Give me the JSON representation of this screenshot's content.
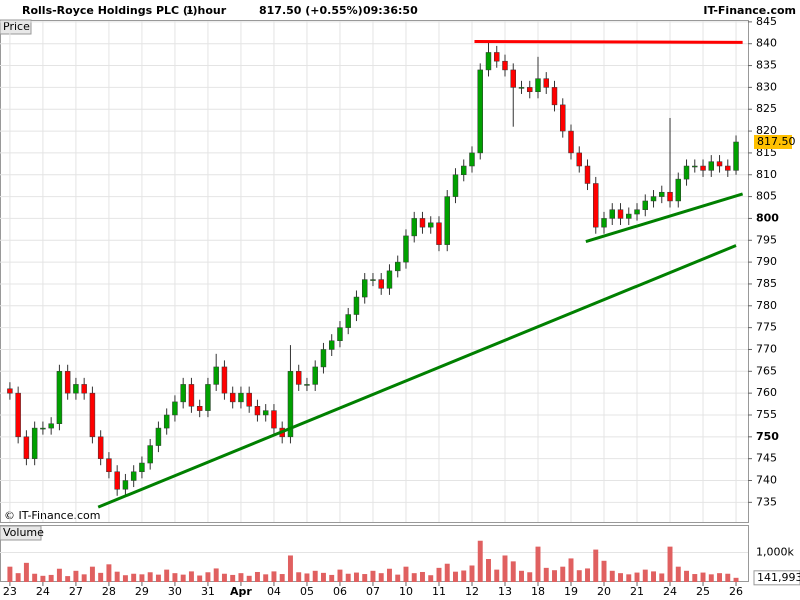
{
  "header": {
    "title": "Rolls-Royce Holdings PLC (-)",
    "interval": "1 hour",
    "quote": "817.50 (+0.55%)",
    "time": "09:36:50",
    "brand": "IT-Finance.com"
  },
  "chart_data": [
    {
      "type": "candlestick",
      "label": "Price",
      "watermark": "© IT-Finance.com",
      "up_color": "#00a000",
      "down_color": "#ff0000",
      "grid": true,
      "xlim": [
        -1.2,
        89.45
      ],
      "ylim": [
        730.5,
        845.2
      ],
      "yticks": [
        735,
        740,
        745,
        750,
        755,
        760,
        765,
        770,
        775,
        780,
        785,
        790,
        795,
        800,
        805,
        810,
        815,
        820,
        825,
        830,
        835,
        840,
        845
      ],
      "xticks": [
        {
          "value": 0,
          "label": "23"
        },
        {
          "value": 4,
          "label": "24"
        },
        {
          "value": 8,
          "label": "27"
        },
        {
          "value": 12,
          "label": "28"
        },
        {
          "value": 16,
          "label": "29"
        },
        {
          "value": 20,
          "label": "30"
        },
        {
          "value": 24,
          "label": "31"
        },
        {
          "value": 28,
          "label": "Apr"
        },
        {
          "value": 32,
          "label": "04"
        },
        {
          "value": 36,
          "label": "05"
        },
        {
          "value": 40,
          "label": "06"
        },
        {
          "value": 44,
          "label": "07"
        },
        {
          "value": 48,
          "label": "10"
        },
        {
          "value": 52,
          "label": "11"
        },
        {
          "value": 56,
          "label": "12"
        },
        {
          "value": 60,
          "label": "13"
        },
        {
          "value": 64,
          "label": "18"
        },
        {
          "value": 68,
          "label": "19"
        },
        {
          "value": 72,
          "label": "20"
        },
        {
          "value": 76,
          "label": "21"
        },
        {
          "value": 80,
          "label": "24"
        },
        {
          "value": 84,
          "label": "25"
        },
        {
          "value": 88,
          "label": "26"
        }
      ],
      "open": [
        761,
        760,
        750,
        745,
        752,
        752,
        753,
        765,
        760,
        762,
        760,
        750,
        745,
        742,
        738,
        740,
        742,
        744,
        748,
        752,
        755,
        758,
        762,
        757,
        756,
        762,
        766,
        760,
        758,
        760,
        757,
        755,
        756,
        752,
        750,
        765,
        762,
        762,
        766,
        770,
        772,
        775,
        778,
        782,
        786,
        786,
        784,
        788,
        790,
        796,
        800,
        798,
        799,
        794,
        805,
        810,
        812,
        815,
        834,
        838,
        836,
        834,
        830,
        830,
        829,
        832,
        830,
        826,
        820,
        815,
        812,
        808,
        798,
        800,
        802,
        800,
        801,
        802,
        804,
        805,
        806,
        804,
        809,
        812,
        812,
        811,
        813,
        812,
        811
      ],
      "close": [
        760,
        750,
        745,
        752,
        752,
        753,
        765,
        760,
        762,
        760,
        750,
        745,
        742,
        738,
        740,
        742,
        744,
        748,
        752,
        755,
        758,
        762,
        757,
        756,
        762,
        766,
        760,
        758,
        760,
        757,
        755,
        756,
        752,
        750,
        765,
        762,
        762,
        766,
        770,
        772,
        775,
        778,
        782,
        786,
        786,
        784,
        788,
        790,
        796,
        800,
        798,
        799,
        794,
        805,
        810,
        812,
        815,
        834,
        838,
        836,
        834,
        830,
        830,
        829,
        832,
        830,
        826,
        820,
        815,
        812,
        808,
        798,
        800,
        802,
        800,
        801,
        802,
        804,
        805,
        806,
        804,
        809,
        812,
        812,
        811,
        813,
        812,
        811,
        817.5
      ],
      "high": [
        762.5,
        761.5,
        751.5,
        753.5,
        753.5,
        754.5,
        766.5,
        766.5,
        763.5,
        763.5,
        761.5,
        751.5,
        746.5,
        743.5,
        741.5,
        743.5,
        745.5,
        749.5,
        753.5,
        756.5,
        759.5,
        763.5,
        763.5,
        758.5,
        763.5,
        769,
        767.5,
        761.5,
        761.5,
        761.5,
        758.5,
        757.5,
        757.5,
        753.5,
        771,
        766.5,
        763.5,
        767.5,
        771.5,
        773.5,
        776.5,
        779.5,
        783.5,
        787.5,
        787.5,
        787.5,
        789.5,
        791.5,
        797.5,
        801.5,
        801.5,
        800.5,
        800.5,
        806.5,
        811.5,
        813.5,
        816.5,
        835.5,
        840.5,
        839.5,
        837.5,
        835.5,
        831.5,
        831.5,
        837,
        833.5,
        831.5,
        827.5,
        821.5,
        816.5,
        813.5,
        809.5,
        801.5,
        803.5,
        803.5,
        802.5,
        803.5,
        805.5,
        806.5,
        807.5,
        823,
        810.5,
        813.5,
        813.5,
        813.5,
        814.5,
        814.5,
        813.5,
        819
      ],
      "low": [
        758.5,
        748.5,
        743.5,
        743.5,
        750.5,
        750.5,
        751.5,
        758.5,
        758.5,
        758.5,
        748.5,
        743.5,
        740.5,
        736.5,
        736.5,
        738.5,
        740.5,
        742.5,
        746.5,
        750.5,
        753.5,
        756.5,
        755.5,
        754.5,
        754.5,
        760.5,
        758.5,
        756.5,
        756.5,
        755.5,
        753.5,
        753.5,
        750.5,
        748.5,
        748.5,
        760.5,
        760.5,
        760.5,
        764.5,
        768.5,
        770.5,
        773.5,
        776.5,
        780.5,
        784.5,
        782.5,
        782.5,
        786.5,
        788.5,
        794.5,
        796.5,
        796.5,
        792.5,
        792.5,
        803.5,
        808.5,
        810.5,
        813.5,
        832.5,
        834.5,
        832.5,
        821,
        828.5,
        827.5,
        827.5,
        828.5,
        824.5,
        818.5,
        813.5,
        810.5,
        806.5,
        796.5,
        796.5,
        798.5,
        798.5,
        798.5,
        799.5,
        800.5,
        802.5,
        803.5,
        802.5,
        802.5,
        807.5,
        810.5,
        809.5,
        809.5,
        810.5,
        809.5,
        810
      ],
      "last": {
        "value": 817.5,
        "label": "817.50",
        "color": "#ffc000"
      },
      "lines": [
        {
          "x": [
            56.3,
            88.8
          ],
          "y": [
            840.5,
            840.3
          ],
          "color": "#ff0000"
        },
        {
          "x": [
            10.7,
            88
          ],
          "y": [
            733.9,
            793.8
          ],
          "color": "#008000"
        },
        {
          "x": [
            69.8,
            88.8
          ],
          "y": [
            794.7,
            805.6
          ],
          "color": "#008000"
        }
      ]
    },
    {
      "type": "bar",
      "label": "Volume",
      "color": "#e06060",
      "xlim": [
        -1.2,
        89.45
      ],
      "ylim": [
        0,
        1900000
      ],
      "yticks": [
        {
          "value": 1000000,
          "label": "1,000k"
        }
      ],
      "values": [
        520000,
        300000,
        650000,
        280000,
        210000,
        240000,
        450000,
        200000,
        380000,
        260000,
        520000,
        310000,
        600000,
        350000,
        230000,
        280000,
        260000,
        330000,
        250000,
        420000,
        300000,
        250000,
        360000,
        220000,
        330000,
        460000,
        280000,
        240000,
        300000,
        210000,
        340000,
        260000,
        360000,
        270000,
        900000,
        330000,
        290000,
        380000,
        310000,
        240000,
        420000,
        280000,
        320000,
        270000,
        380000,
        300000,
        450000,
        250000,
        520000,
        300000,
        340000,
        230000,
        480000,
        620000,
        350000,
        390000,
        560000,
        1400000,
        780000,
        420000,
        900000,
        700000,
        380000,
        330000,
        1200000,
        480000,
        400000,
        520000,
        800000,
        400000,
        460000,
        1100000,
        720000,
        380000,
        300000,
        260000,
        320000,
        420000,
        360000,
        290000,
        1200000,
        520000,
        380000,
        270000,
        320000,
        260000,
        300000,
        280000,
        141993
      ],
      "last": {
        "value": 141993,
        "label": "141,993"
      }
    }
  ]
}
